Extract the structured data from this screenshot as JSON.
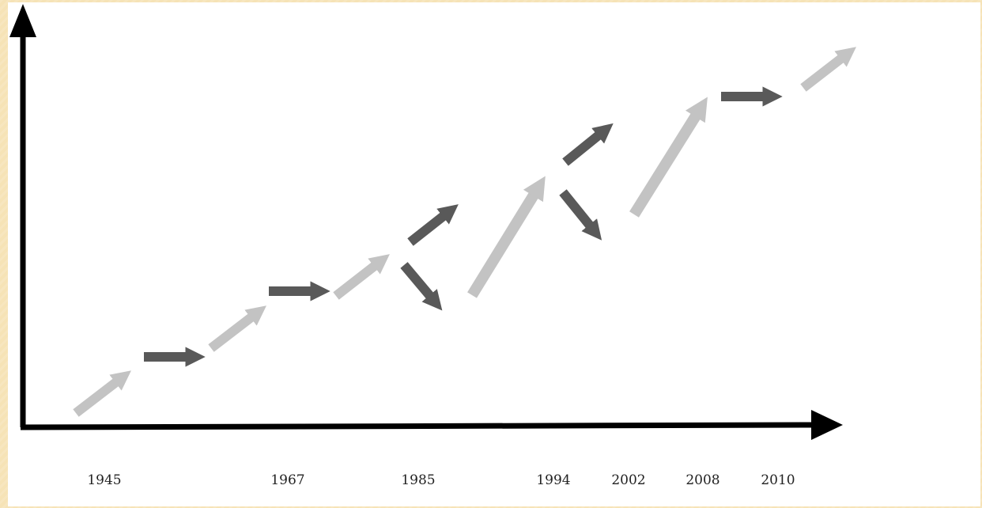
{
  "colors": {
    "background": "#f6e3b6",
    "panel": "#ffffff",
    "axis": "#000000",
    "arrow_light": "#c3c3c3",
    "arrow_dark": "#595959"
  },
  "timeline": {
    "years": [
      "1945",
      "1967",
      "1985",
      "1994",
      "2002",
      "2008",
      "2010"
    ]
  }
}
